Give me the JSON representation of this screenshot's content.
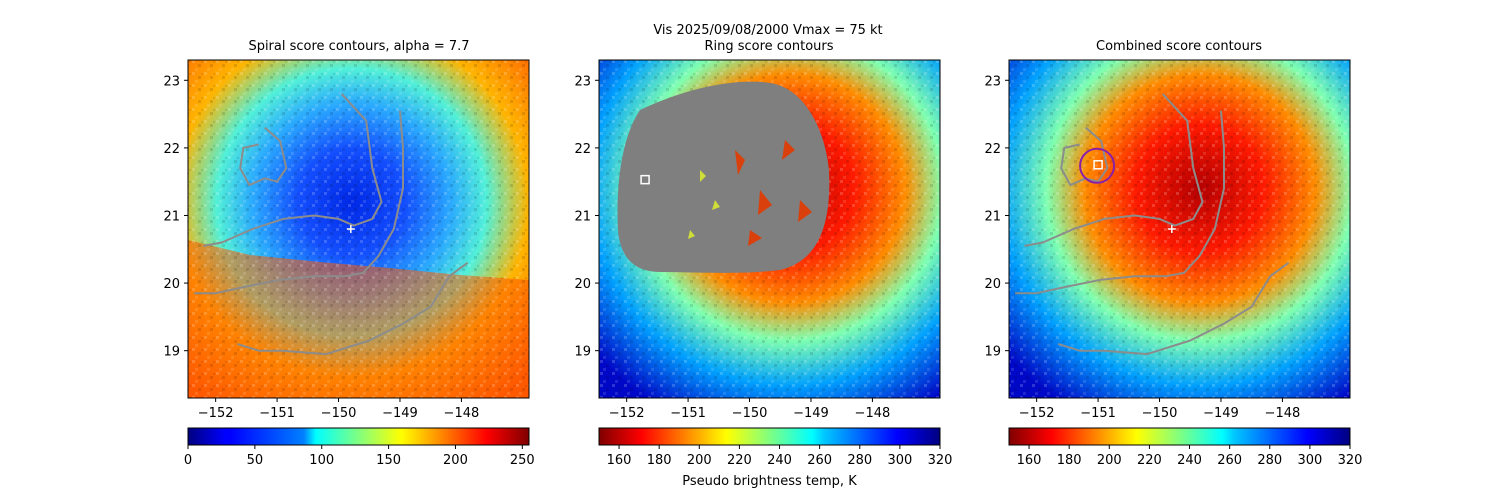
{
  "figure": {
    "suptitle": "Vis  2025/09/08/2000    Vmax = 75 kt"
  },
  "colors": {
    "contour": "#8c8c8c",
    "ring_mask": "#7f7f7f",
    "center_marker": "#ffffff",
    "combined_circle": "#8b1fa8"
  },
  "chart_data": [
    {
      "type": "heatmap",
      "title": "Spiral score contours, alpha =  7.7",
      "xlim": [
        -152.45,
        -146.9
      ],
      "ylim": [
        18.3,
        23.3
      ],
      "x_ticks": [
        -152,
        -151,
        -150,
        -149,
        -148
      ],
      "x_tick_labels": [
        "−152",
        "−151",
        "−150",
        "−149",
        "−148"
      ],
      "y_ticks": [
        19,
        20,
        21,
        22,
        23
      ],
      "y_tick_labels": [
        "19",
        "20",
        "21",
        "22",
        "23"
      ],
      "colorbar": {
        "cmap": "jet",
        "range": [
          0,
          255
        ],
        "ticks": [
          0,
          50,
          100,
          150,
          200,
          250
        ],
        "tick_labels": [
          "0",
          "50",
          "100",
          "150",
          "200",
          "250"
        ],
        "label": ""
      },
      "center_marker": {
        "shape": "plus",
        "x": -149.8,
        "y": 20.8
      },
      "contours": [
        [
          [
            -149.95,
            22.8
          ],
          [
            -149.55,
            22.4
          ],
          [
            -149.45,
            21.7
          ],
          [
            -149.3,
            21.2
          ],
          [
            -149.45,
            20.95
          ],
          [
            -149.75,
            20.85
          ],
          [
            -150.0,
            20.95
          ],
          [
            -150.4,
            21.0
          ],
          [
            -150.9,
            20.95
          ],
          [
            -151.4,
            20.8
          ],
          [
            -151.9,
            20.6
          ],
          [
            -152.2,
            20.55
          ]
        ],
        [
          [
            -149.9,
            20.1
          ],
          [
            -150.4,
            20.1
          ],
          [
            -150.95,
            20.05
          ],
          [
            -151.5,
            19.95
          ],
          [
            -152.0,
            19.85
          ],
          [
            -152.35,
            19.85
          ]
        ],
        [
          [
            -149.0,
            22.55
          ],
          [
            -148.95,
            22.0
          ],
          [
            -148.95,
            21.4
          ],
          [
            -149.1,
            20.8
          ],
          [
            -149.35,
            20.4
          ],
          [
            -149.6,
            20.15
          ],
          [
            -149.9,
            20.1
          ]
        ],
        [
          [
            -151.2,
            22.3
          ],
          [
            -150.95,
            22.1
          ],
          [
            -150.85,
            21.7
          ],
          [
            -151.0,
            21.5
          ],
          [
            -151.2,
            21.55
          ],
          [
            -151.45,
            21.45
          ],
          [
            -151.6,
            21.7
          ],
          [
            -151.55,
            22.0
          ],
          [
            -151.3,
            22.05
          ]
        ],
        [
          [
            -147.9,
            20.3
          ],
          [
            -148.2,
            20.1
          ],
          [
            -148.5,
            19.65
          ],
          [
            -148.95,
            19.4
          ],
          [
            -149.5,
            19.15
          ],
          [
            -150.2,
            18.95
          ],
          [
            -150.9,
            19.0
          ],
          [
            -151.3,
            19.0
          ],
          [
            -151.65,
            19.1
          ]
        ]
      ]
    },
    {
      "type": "heatmap",
      "title": "Ring score contours",
      "xlim": [
        -152.45,
        -146.9
      ],
      "ylim": [
        18.3,
        23.3
      ],
      "x_ticks": [
        -152,
        -151,
        -150,
        -149,
        -148
      ],
      "x_tick_labels": [
        "−152",
        "−151",
        "−150",
        "−149",
        "−148"
      ],
      "y_ticks": [
        19,
        20,
        21,
        22,
        23
      ],
      "y_tick_labels": [
        "19",
        "20",
        "21",
        "22",
        "23"
      ],
      "colorbar": {
        "cmap": "jet_r",
        "range": [
          150,
          320
        ],
        "ticks": [
          160,
          180,
          200,
          220,
          240,
          260,
          280,
          300,
          320
        ],
        "tick_labels": [
          "160",
          "180",
          "200",
          "220",
          "240",
          "260",
          "280",
          "300",
          "320"
        ],
        "label": "Pseudo brightness temp, K"
      },
      "center_marker": {
        "shape": "square",
        "x": -151.7,
        "y": 21.53
      }
    },
    {
      "type": "heatmap",
      "title": "Combined score contours",
      "xlim": [
        -152.45,
        -146.9
      ],
      "ylim": [
        18.3,
        23.3
      ],
      "x_ticks": [
        -152,
        -151,
        -150,
        -149,
        -148
      ],
      "x_tick_labels": [
        "−152",
        "−151",
        "−150",
        "−149",
        "−148"
      ],
      "y_ticks": [
        19,
        20,
        21,
        22,
        23
      ],
      "y_tick_labels": [
        "19",
        "20",
        "21",
        "22",
        "23"
      ],
      "colorbar": {
        "cmap": "jet_r",
        "range": [
          150,
          320
        ],
        "ticks": [
          160,
          180,
          200,
          220,
          240,
          260,
          280,
          300,
          320
        ],
        "tick_labels": [
          "160",
          "180",
          "200",
          "220",
          "240",
          "260",
          "280",
          "300",
          "320"
        ],
        "label": ""
      },
      "center_marker": {
        "shape": "plus",
        "x": -149.8,
        "y": 20.8
      },
      "square_marker": {
        "x": -151.0,
        "y": 21.75
      },
      "contours": [
        [
          [
            -149.95,
            22.8
          ],
          [
            -149.55,
            22.4
          ],
          [
            -149.45,
            21.7
          ],
          [
            -149.3,
            21.2
          ],
          [
            -149.45,
            20.95
          ],
          [
            -149.75,
            20.85
          ],
          [
            -150.0,
            20.95
          ],
          [
            -150.4,
            21.0
          ],
          [
            -150.9,
            20.95
          ],
          [
            -151.4,
            20.8
          ],
          [
            -151.9,
            20.6
          ],
          [
            -152.2,
            20.55
          ]
        ],
        [
          [
            -149.9,
            20.1
          ],
          [
            -150.4,
            20.1
          ],
          [
            -150.95,
            20.05
          ],
          [
            -151.5,
            19.95
          ],
          [
            -152.0,
            19.85
          ],
          [
            -152.35,
            19.85
          ]
        ],
        [
          [
            -149.0,
            22.55
          ],
          [
            -148.95,
            22.0
          ],
          [
            -148.95,
            21.4
          ],
          [
            -149.1,
            20.8
          ],
          [
            -149.35,
            20.4
          ],
          [
            -149.6,
            20.15
          ],
          [
            -149.9,
            20.1
          ]
        ],
        [
          [
            -151.2,
            22.3
          ],
          [
            -150.95,
            22.1
          ],
          [
            -150.85,
            21.7
          ],
          [
            -151.0,
            21.5
          ],
          [
            -151.2,
            21.55
          ],
          [
            -151.45,
            21.45
          ],
          [
            -151.6,
            21.7
          ],
          [
            -151.55,
            22.0
          ],
          [
            -151.3,
            22.05
          ]
        ],
        [
          [
            -147.9,
            20.3
          ],
          [
            -148.2,
            20.1
          ],
          [
            -148.5,
            19.65
          ],
          [
            -148.95,
            19.4
          ],
          [
            -149.5,
            19.15
          ],
          [
            -150.2,
            18.95
          ],
          [
            -150.9,
            19.0
          ],
          [
            -151.3,
            19.0
          ],
          [
            -151.65,
            19.1
          ]
        ]
      ]
    }
  ]
}
